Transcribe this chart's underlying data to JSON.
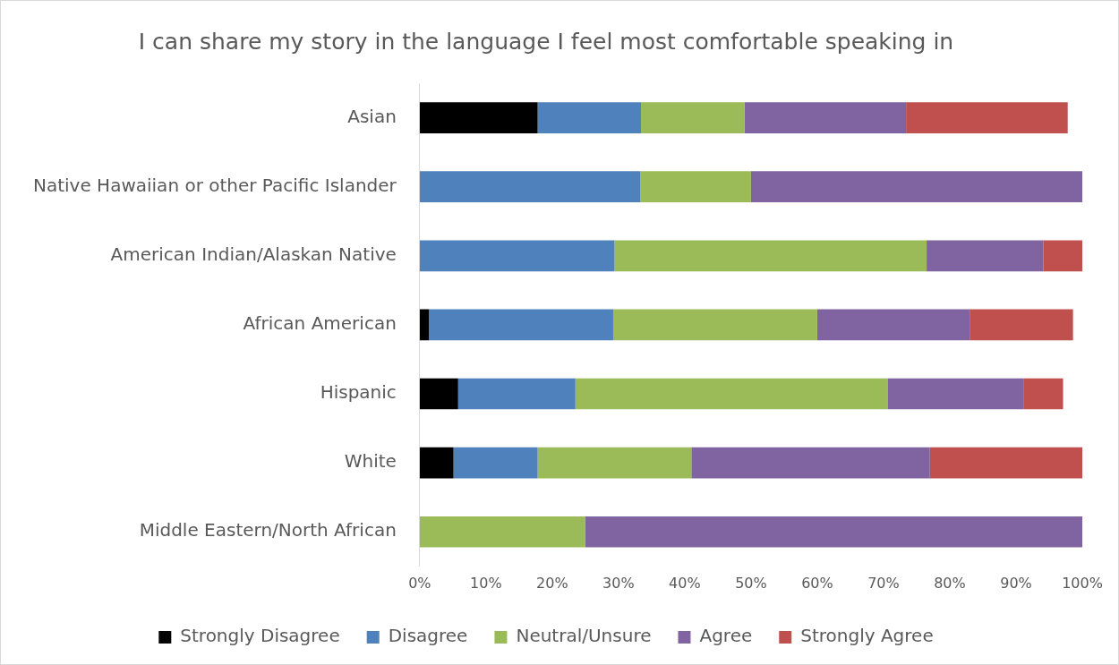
{
  "chart_data": {
    "type": "bar",
    "orientation": "horizontal",
    "stacked": true,
    "title": "I can share my story in the language I feel most comfortable speaking in",
    "categories": [
      "Asian",
      "Native Hawaiian or other Pacific Islander",
      "American Indian/Alaskan Native",
      "African American",
      "Hispanic",
      "White",
      "Middle Eastern/North African"
    ],
    "series": [
      {
        "name": "Strongly Disagree",
        "color": "#000000",
        "values": [
          17.8,
          0,
          0,
          1.4,
          5.8,
          5.1,
          0
        ]
      },
      {
        "name": "Disagree",
        "color": "#4f81bd",
        "values": [
          15.6,
          33.3,
          29.4,
          27.8,
          17.7,
          12.7,
          0
        ]
      },
      {
        "name": "Neutral/Unsure",
        "color": "#9bbb59",
        "values": [
          15.6,
          16.7,
          47.1,
          30.8,
          47.1,
          23.2,
          25
        ]
      },
      {
        "name": "Agree",
        "color": "#8064a2",
        "values": [
          24.4,
          50,
          17.6,
          23,
          20.6,
          36,
          75
        ]
      },
      {
        "name": "Strongly Agree",
        "color": "#c0504d",
        "values": [
          24.4,
          0,
          5.9,
          15.6,
          5.9,
          23,
          0
        ]
      }
    ],
    "xlim": [
      0,
      100
    ],
    "xticks": [
      {
        "value": 0,
        "label": "0%"
      },
      {
        "value": 10,
        "label": "10%"
      },
      {
        "value": 20,
        "label": "20%"
      },
      {
        "value": 30,
        "label": "30%"
      },
      {
        "value": 40,
        "label": "40%"
      },
      {
        "value": 50,
        "label": "50%"
      },
      {
        "value": 60,
        "label": "60%"
      },
      {
        "value": 70,
        "label": "70%"
      },
      {
        "value": 80,
        "label": "80%"
      },
      {
        "value": 90,
        "label": "90%"
      },
      {
        "value": 100,
        "label": "100%"
      }
    ],
    "grid": false,
    "legend": "bottom"
  }
}
